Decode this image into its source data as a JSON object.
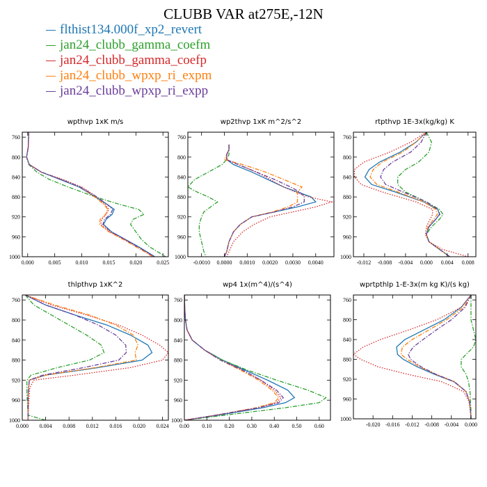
{
  "title": "CLUBB VAR at275E,-12N",
  "colors": {
    "blue": "#1f77b4",
    "green": "#2ca02c",
    "red": "#d62728",
    "orange": "#ff7f0e",
    "purple": "#6a3d9a"
  },
  "legend": [
    {
      "label": "flthist134.000f_xp2_revert",
      "color": "#1f77b4",
      "style": "solid"
    },
    {
      "label": "jan24_clubb_gamma_coefm",
      "color": "#2ca02c",
      "style": "dashdot"
    },
    {
      "label": "jan24_clubb_gamma_coefp",
      "color": "#d62728",
      "style": "dotted"
    },
    {
      "label": "jan24_clubb_wpxp_ri_expm",
      "color": "#ff7f0e",
      "style": "dashdot"
    },
    {
      "label": "jan24_clubb_wpxp_ri_expp",
      "color": "#6a3d9a",
      "style": "dashdot"
    }
  ],
  "chart_data": [
    {
      "type": "line",
      "title": "wpthvp  1xK m/s",
      "xlim": [
        -0.001,
        0.026
      ],
      "ylim": [
        1000,
        750
      ],
      "xticks": [
        0.0,
        0.005,
        0.01,
        0.015,
        0.02,
        0.025
      ],
      "xtick_labels": [
        "0.000",
        "0.005",
        "0.010",
        "0.015",
        "0.020",
        "0.025"
      ],
      "yticks": [
        760,
        800,
        840,
        880,
        920,
        960,
        1000
      ],
      "ytick_labels": [
        "760",
        "800",
        "840",
        "880",
        "920",
        "960",
        "1000"
      ],
      "y": [
        750,
        780,
        800,
        815,
        830,
        845,
        860,
        880,
        895,
        905,
        915,
        925,
        935,
        950,
        965,
        980,
        990,
        1000
      ],
      "series": [
        {
          "legend_index": 0,
          "x": [
            0.0002,
            0.0001,
            -0.0002,
            0.0003,
            0.0025,
            0.006,
            0.0095,
            0.0125,
            0.0147,
            0.016,
            0.0156,
            0.0145,
            0.014,
            0.0155,
            0.018,
            0.0205,
            0.022,
            0.0235
          ]
        },
        {
          "legend_index": 1,
          "x": [
            0.0002,
            0.0001,
            -0.0002,
            0.0002,
            0.0017,
            0.004,
            0.0075,
            0.0125,
            0.017,
            0.0205,
            0.0215,
            0.0195,
            0.019,
            0.02,
            0.021,
            0.0225,
            0.024,
            0.0255
          ]
        },
        {
          "legend_index": 2,
          "x": [
            0.0002,
            0.0001,
            -0.0002,
            0.0003,
            0.0025,
            0.0065,
            0.01,
            0.0128,
            0.0143,
            0.015,
            0.0145,
            0.0137,
            0.0135,
            0.0152,
            0.0178,
            0.0203,
            0.0218,
            0.0233
          ]
        },
        {
          "legend_index": 3,
          "x": [
            0.0002,
            0.0001,
            -0.0002,
            0.0003,
            0.0025,
            0.0062,
            0.0097,
            0.0124,
            0.0141,
            0.0148,
            0.0144,
            0.0134,
            0.0133,
            0.015,
            0.0176,
            0.02,
            0.0216,
            0.0231
          ]
        },
        {
          "legend_index": 4,
          "x": [
            0.0002,
            0.0001,
            -0.0002,
            0.0003,
            0.0025,
            0.0062,
            0.0097,
            0.0128,
            0.0147,
            0.0157,
            0.0153,
            0.0142,
            0.0139,
            0.0154,
            0.0179,
            0.0203,
            0.0219,
            0.0234
          ]
        }
      ]
    },
    {
      "type": "line",
      "title": "wp2thvp  1xK m^2/s^2",
      "xlim": [
        -0.0016,
        0.0048
      ],
      "ylim": [
        1000,
        750
      ],
      "xticks": [
        -0.001,
        0.0,
        0.001,
        0.002,
        0.003,
        0.004
      ],
      "xtick_labels": [
        "-0.0010",
        "0.0000",
        "0.0010",
        "0.0020",
        "0.0030",
        "0.0040"
      ],
      "yticks": [
        760,
        800,
        840,
        880,
        920,
        960,
        1000
      ],
      "ytick_labels": [
        "760",
        "800",
        "840",
        "880",
        "920",
        "960",
        "1000"
      ],
      "y": [
        775,
        785,
        795,
        805,
        815,
        830,
        845,
        860,
        870,
        880,
        890,
        900,
        910,
        920,
        935,
        950,
        970,
        990,
        1000
      ],
      "series": [
        {
          "legend_index": 0,
          "x": [
            0.0002,
            0.0002,
            0.0001,
            0.0001,
            0.0004,
            0.0012,
            0.0019,
            0.0026,
            0.0032,
            0.0038,
            0.004,
            0.0032,
            0.0022,
            0.0012,
            0.0007,
            0.0004,
            0.0002,
            0.0001,
            0.0
          ]
        },
        {
          "legend_index": 1,
          "x": [
            0.0002,
            0.0002,
            0.0002,
            0.0001,
            -0.0001,
            -0.0007,
            -0.0013,
            -0.0016,
            -0.0012,
            -0.0007,
            -0.0003,
            -0.0006,
            -0.0009,
            -0.001,
            -0.0011,
            -0.0011,
            -0.001,
            -0.0009,
            -0.0008
          ]
        },
        {
          "legend_index": 2,
          "x": [
            0.0002,
            0.0002,
            0.0001,
            0.0001,
            0.0006,
            0.0014,
            0.002,
            0.0026,
            0.0031,
            0.0037,
            0.0047,
            0.004,
            0.003,
            0.002,
            0.0013,
            0.0008,
            0.0004,
            0.0002,
            0.0001
          ]
        },
        {
          "legend_index": 3,
          "x": [
            0.0002,
            0.0002,
            0.0001,
            0.0,
            0.0008,
            0.0018,
            0.0026,
            0.0034,
            0.0032,
            0.0032,
            0.0032,
            0.0028,
            0.0021,
            0.0012,
            0.0007,
            0.0004,
            0.0002,
            0.0001,
            0.0
          ]
        },
        {
          "legend_index": 4,
          "x": [
            0.0002,
            0.0002,
            0.0001,
            0.0001,
            0.0006,
            0.0014,
            0.0022,
            0.0029,
            0.0033,
            0.0035,
            0.0035,
            0.003,
            0.0022,
            0.0012,
            0.0007,
            0.0004,
            0.0002,
            0.0001,
            0.0
          ]
        }
      ]
    },
    {
      "type": "line",
      "title": "rtpthvp  1E-3x(kg/kg) K",
      "xlim": [
        -0.014,
        0.0095
      ],
      "ylim": [
        1000,
        750
      ],
      "xticks": [
        -0.012,
        -0.008,
        -0.004,
        0.0,
        0.004,
        0.008
      ],
      "xtick_labels": [
        "-0.012",
        "-0.008",
        "-0.004",
        "0.000",
        "0.004",
        "0.008"
      ],
      "yticks": [
        760,
        800,
        840,
        880,
        920,
        960,
        1000
      ],
      "ytick_labels": [
        "760",
        "800",
        "840",
        "880",
        "920",
        "960",
        "1000"
      ],
      "y": [
        750,
        770,
        790,
        810,
        825,
        840,
        855,
        870,
        890,
        905,
        915,
        925,
        940,
        955,
        970,
        985,
        1000
      ],
      "series": [
        {
          "legend_index": 0,
          "x": [
            0.0,
            -0.002,
            -0.005,
            -0.009,
            -0.011,
            -0.0118,
            -0.0105,
            -0.006,
            -0.0005,
            0.0022,
            0.0025,
            0.0018,
            0.0005,
            0.0,
            0.0005,
            0.0025,
            0.0045
          ]
        },
        {
          "legend_index": 1,
          "x": [
            0.0,
            0.001,
            0.0005,
            -0.0015,
            -0.004,
            -0.0055,
            -0.0055,
            -0.004,
            0.0,
            0.0025,
            0.0032,
            0.0025,
            0.001,
            0.0,
            0.0005,
            0.0025,
            0.0045
          ]
        },
        {
          "legend_index": 2,
          "x": [
            0.0,
            -0.003,
            -0.007,
            -0.012,
            -0.0138,
            -0.0138,
            -0.0125,
            -0.0085,
            -0.002,
            0.0012,
            0.0012,
            0.0007,
            0.0,
            -0.0002,
            0.0005,
            0.003,
            0.008
          ]
        },
        {
          "legend_index": 3,
          "x": [
            0.0,
            -0.002,
            -0.0045,
            -0.0085,
            -0.0102,
            -0.0108,
            -0.0095,
            -0.0055,
            -0.0005,
            0.0018,
            0.0021,
            0.0014,
            0.0003,
            0.0,
            0.0005,
            0.0025,
            0.0045
          ]
        },
        {
          "legend_index": 4,
          "x": [
            0.0,
            -0.001,
            -0.003,
            -0.0065,
            -0.0082,
            -0.0088,
            -0.0078,
            -0.0045,
            0.0,
            0.0022,
            0.0026,
            0.0018,
            0.0005,
            0.0,
            0.0005,
            0.0025,
            0.0045
          ]
        }
      ]
    },
    {
      "type": "line",
      "title": "thlpthvp  1xK^2",
      "xlim": [
        0.0,
        0.025
      ],
      "ylim": [
        1000,
        750
      ],
      "xticks": [
        0.0,
        0.004,
        0.008,
        0.012,
        0.016,
        0.02,
        0.024
      ],
      "xtick_labels": [
        "0.000",
        "0.004",
        "0.008",
        "0.012",
        "0.016",
        "0.020",
        "0.024"
      ],
      "yticks": [
        760,
        800,
        840,
        880,
        920,
        960,
        1000
      ],
      "ytick_labels": [
        "760",
        "800",
        "840",
        "880",
        "920",
        "960",
        "1000"
      ],
      "y": [
        750,
        770,
        790,
        810,
        830,
        850,
        865,
        880,
        895,
        910,
        920,
        935,
        950,
        970,
        990,
        1000
      ],
      "series": [
        {
          "legend_index": 0,
          "x": [
            0.0005,
            0.004,
            0.009,
            0.0145,
            0.0185,
            0.0215,
            0.0222,
            0.0205,
            0.013,
            0.004,
            0.0012,
            0.0011,
            0.001,
            0.001,
            0.001,
            0.001
          ]
        },
        {
          "legend_index": 1,
          "x": [
            0.0005,
            0.002,
            0.005,
            0.008,
            0.011,
            0.0135,
            0.014,
            0.0115,
            0.006,
            0.0015,
            0.0008,
            0.0008,
            0.0008,
            0.0009,
            0.001,
            0.004
          ]
        },
        {
          "legend_index": 2,
          "x": [
            0.0005,
            0.005,
            0.011,
            0.0165,
            0.0205,
            0.0235,
            0.025,
            0.024,
            0.0185,
            0.009,
            0.002,
            0.0013,
            0.0012,
            0.0011,
            0.001,
            0.001
          ]
        },
        {
          "legend_index": 3,
          "x": [
            0.0005,
            0.0055,
            0.0115,
            0.016,
            0.019,
            0.0198,
            0.0193,
            0.0195,
            0.0125,
            0.004,
            0.0012,
            0.0011,
            0.001,
            0.001,
            0.001,
            0.001
          ]
        },
        {
          "legend_index": 4,
          "x": [
            0.0005,
            0.004,
            0.009,
            0.013,
            0.016,
            0.0177,
            0.0178,
            0.0165,
            0.0105,
            0.0035,
            0.0012,
            0.0011,
            0.001,
            0.001,
            0.001,
            0.001
          ]
        }
      ]
    },
    {
      "type": "line",
      "title": "wp4  1x(m^4)/(s^4)",
      "xlim": [
        0.0,
        0.65
      ],
      "ylim": [
        1000,
        750
      ],
      "xticks": [
        0.0,
        0.1,
        0.2,
        0.3,
        0.4,
        0.5,
        0.6
      ],
      "xtick_labels": [
        "0.00",
        "0.10",
        "0.20",
        "0.30",
        "0.40",
        "0.50",
        "0.60"
      ],
      "yticks": [
        760,
        800,
        840,
        880,
        920,
        960,
        1000
      ],
      "ytick_labels": [
        "760",
        "800",
        "840",
        "880",
        "920",
        "960",
        "1000"
      ],
      "y": [
        750,
        780,
        800,
        820,
        840,
        860,
        880,
        900,
        920,
        940,
        955,
        965,
        975,
        990,
        1000
      ],
      "series": [
        {
          "legend_index": 0,
          "x": [
            0.0,
            0.002,
            0.005,
            0.012,
            0.035,
            0.09,
            0.17,
            0.27,
            0.37,
            0.46,
            0.49,
            0.45,
            0.35,
            0.15,
            0.0
          ]
        },
        {
          "legend_index": 1,
          "x": [
            0.0,
            0.002,
            0.005,
            0.012,
            0.035,
            0.09,
            0.17,
            0.28,
            0.41,
            0.55,
            0.63,
            0.6,
            0.45,
            0.18,
            0.0
          ]
        },
        {
          "legend_index": 2,
          "x": [
            0.0,
            0.002,
            0.005,
            0.012,
            0.035,
            0.09,
            0.16,
            0.26,
            0.34,
            0.4,
            0.43,
            0.41,
            0.33,
            0.14,
            0.0
          ]
        },
        {
          "legend_index": 3,
          "x": [
            0.0,
            0.002,
            0.005,
            0.012,
            0.035,
            0.09,
            0.16,
            0.25,
            0.33,
            0.39,
            0.42,
            0.4,
            0.32,
            0.14,
            0.0
          ]
        },
        {
          "legend_index": 4,
          "x": [
            0.0,
            0.002,
            0.005,
            0.012,
            0.035,
            0.09,
            0.16,
            0.26,
            0.34,
            0.41,
            0.44,
            0.42,
            0.33,
            0.14,
            0.0
          ]
        }
      ]
    },
    {
      "type": "line",
      "title": "wprtpthlp  1-E-3x(m kg K)/(s kg)",
      "xlim": [
        -0.024,
        0.001
      ],
      "ylim": [
        1000,
        750
      ],
      "xticks": [
        -0.02,
        -0.016,
        -0.012,
        -0.008,
        -0.004,
        0.0
      ],
      "xtick_labels": [
        "-0.020",
        "-0.016",
        "-0.012",
        "-0.008",
        "-0.004",
        "0.000"
      ],
      "yticks": [
        760,
        800,
        840,
        880,
        920,
        960,
        1000
      ],
      "ytick_labels": [
        "760",
        "800",
        "840",
        "880",
        "920",
        "960",
        "1000"
      ],
      "y": [
        750,
        775,
        800,
        820,
        840,
        855,
        870,
        880,
        895,
        910,
        925,
        945,
        965,
        985,
        1000
      ],
      "series": [
        {
          "legend_index": 0,
          "x": [
            0.0,
            -0.002,
            -0.0055,
            -0.0095,
            -0.0135,
            -0.0152,
            -0.015,
            -0.0138,
            -0.011,
            -0.0075,
            -0.0035,
            -0.001,
            -0.0003,
            -0.0001,
            0.0
          ]
        },
        {
          "legend_index": 1,
          "x": [
            0.0,
            0.0,
            0.0,
            0.0005,
            0.001,
            0.0005,
            -0.001,
            -0.002,
            -0.002,
            -0.001,
            -0.0005,
            -0.0002,
            -0.0001,
            0.0,
            0.0
          ]
        },
        {
          "legend_index": 2,
          "x": [
            0.0,
            -0.002,
            -0.007,
            -0.0125,
            -0.0185,
            -0.022,
            -0.024,
            -0.0225,
            -0.019,
            -0.013,
            -0.006,
            -0.0015,
            -0.0004,
            -0.0001,
            0.0
          ]
        },
        {
          "legend_index": 3,
          "x": [
            0.0,
            -0.0015,
            -0.005,
            -0.0085,
            -0.012,
            -0.014,
            -0.0143,
            -0.013,
            -0.0105,
            -0.0072,
            -0.0034,
            -0.001,
            -0.0003,
            -0.0001,
            0.0
          ]
        },
        {
          "legend_index": 4,
          "x": [
            0.0,
            -0.0012,
            -0.004,
            -0.007,
            -0.0098,
            -0.0118,
            -0.0128,
            -0.0123,
            -0.0102,
            -0.0072,
            -0.0034,
            -0.001,
            -0.0003,
            -0.0001,
            0.0
          ]
        }
      ]
    }
  ]
}
